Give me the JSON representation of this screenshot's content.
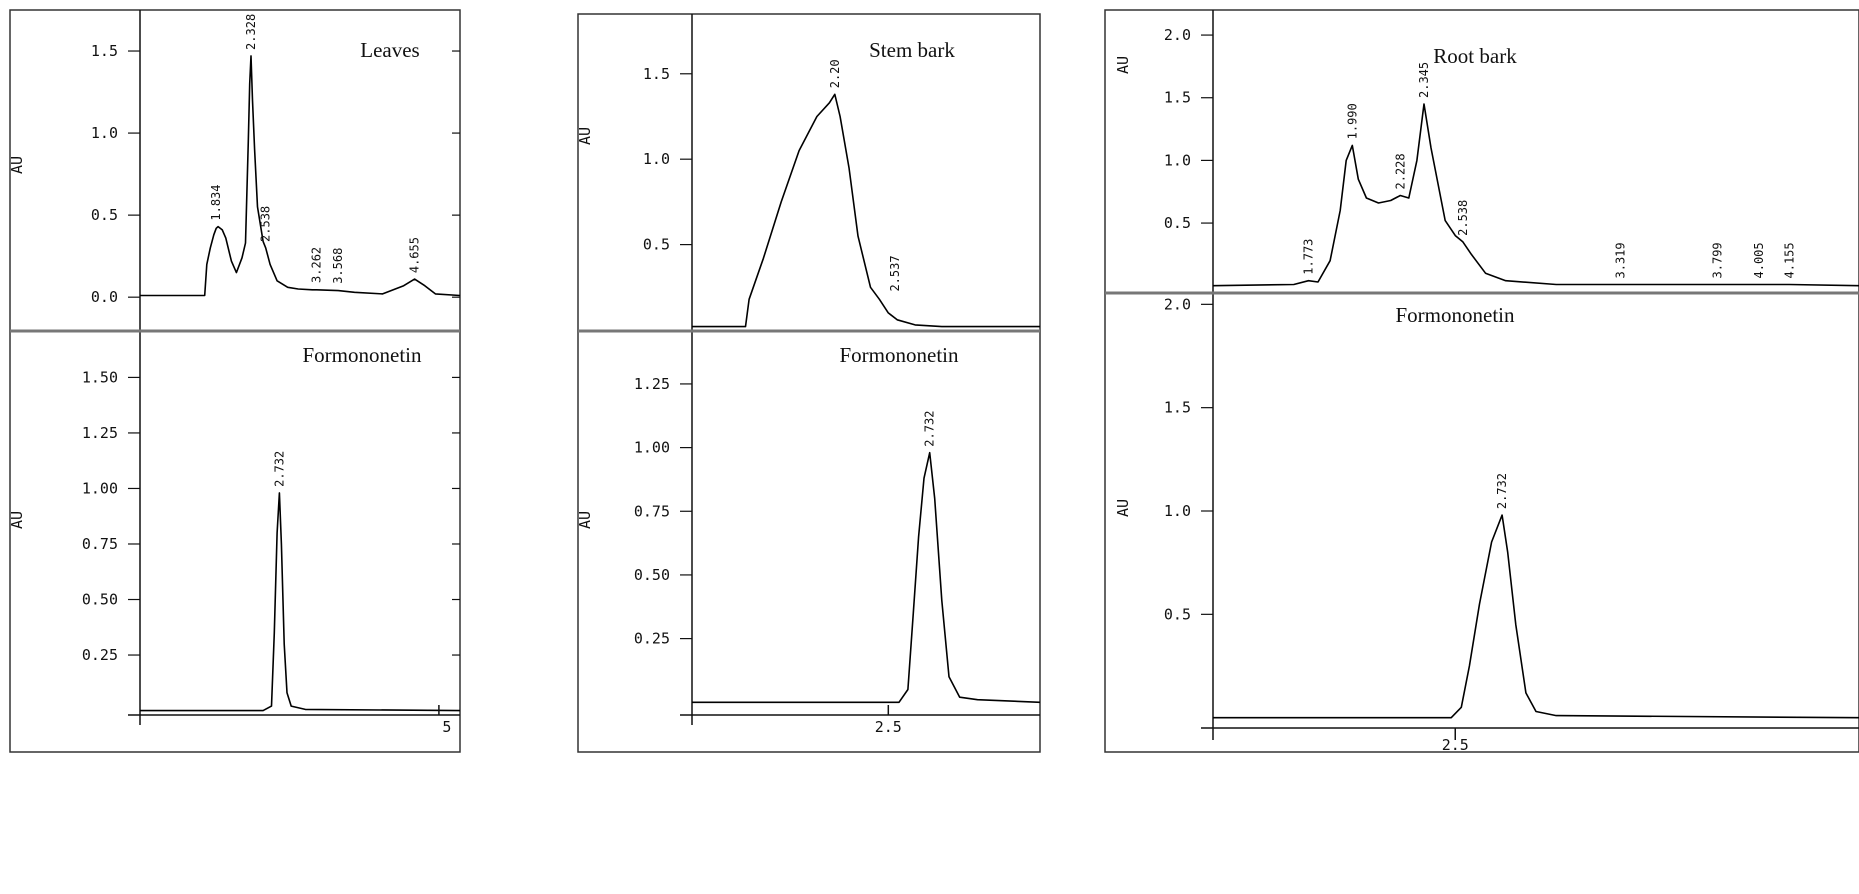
{
  "chart_data": [
    {
      "type": "line",
      "panel": "left",
      "xlim": [
        0.75,
        5.3
      ],
      "xticks": [
        {
          "value": 5,
          "label": "5"
        }
      ],
      "subplots": [
        {
          "title": "Leaves",
          "ylabel": "AU",
          "ylim": [
            -0.2,
            1.75
          ],
          "yticks": [
            {
              "value": 0.0,
              "label": "0.0"
            },
            {
              "value": 0.5,
              "label": "0.5"
            },
            {
              "value": 1.0,
              "label": "1.0"
            },
            {
              "value": 1.5,
              "label": "1.5"
            }
          ],
          "series": [
            {
              "x": [
                0.75,
                1.67,
                1.7,
                1.75,
                1.8,
                1.834,
                1.86,
                1.92,
                1.97,
                2.05,
                2.12,
                2.2,
                2.25,
                2.29,
                2.31,
                2.328,
                2.35,
                2.38,
                2.42,
                2.5,
                2.538,
                2.6,
                2.7,
                2.85,
                3.0,
                3.2,
                3.262,
                3.568,
                3.8,
                4.2,
                4.5,
                4.655,
                4.8,
                4.95,
                5.3
              ],
              "y": [
                0.01,
                0.01,
                0.2,
                0.3,
                0.38,
                0.42,
                0.43,
                0.41,
                0.36,
                0.22,
                0.15,
                0.24,
                0.33,
                0.95,
                1.3,
                1.47,
                1.2,
                0.9,
                0.55,
                0.34,
                0.3,
                0.2,
                0.1,
                0.06,
                0.05,
                0.045,
                0.045,
                0.04,
                0.03,
                0.02,
                0.07,
                0.11,
                0.07,
                0.02,
                0.01
              ]
            }
          ],
          "peak_labels": [
            {
              "x": 1.834,
              "y": 0.43,
              "label": "1.834"
            },
            {
              "x": 2.328,
              "y": 1.47,
              "label": "2.328"
            },
            {
              "x": 2.538,
              "y": 0.3,
              "label": "2.538"
            },
            {
              "x": 3.262,
              "y": 0.05,
              "label": "3.262"
            },
            {
              "x": 3.568,
              "y": 0.045,
              "label": "3.568"
            },
            {
              "x": 4.655,
              "y": 0.11,
              "label": "4.655"
            }
          ]
        },
        {
          "title": "Formononetin",
          "ylabel": "AU",
          "ylim": [
            -0.02,
            1.7
          ],
          "yticks": [
            {
              "value": 0.25,
              "label": "0.25"
            },
            {
              "value": 0.5,
              "label": "0.50"
            },
            {
              "value": 0.75,
              "label": "0.75"
            },
            {
              "value": 1.0,
              "label": "1.00"
            },
            {
              "value": 1.25,
              "label": "1.25"
            },
            {
              "value": 1.5,
              "label": "1.50"
            }
          ],
          "series": [
            {
              "x": [
                0.75,
                2.5,
                2.62,
                2.66,
                2.7,
                2.732,
                2.76,
                2.8,
                2.84,
                2.9,
                3.1,
                5.3
              ],
              "y": [
                0.0,
                0.0,
                0.02,
                0.35,
                0.8,
                0.98,
                0.75,
                0.3,
                0.08,
                0.02,
                0.005,
                0.0
              ]
            }
          ],
          "peak_labels": [
            {
              "x": 2.732,
              "y": 0.98,
              "label": "2.732"
            }
          ]
        }
      ]
    },
    {
      "type": "line",
      "panel": "middle",
      "xlim": [
        1.4,
        3.35
      ],
      "xticks": [
        {
          "value": 2.5,
          "label": "2.5"
        }
      ],
      "subplots": [
        {
          "title": "Stem bark",
          "ylabel": "AU",
          "ylim": [
            0.0,
            1.85
          ],
          "yticks": [
            {
              "value": 0.5,
              "label": "0.5"
            },
            {
              "value": 1.0,
              "label": "1.0"
            },
            {
              "value": 1.5,
              "label": "1.5"
            }
          ],
          "series": [
            {
              "x": [
                1.4,
                1.7,
                1.72,
                1.8,
                1.9,
                2.0,
                2.1,
                2.17,
                2.2,
                2.23,
                2.28,
                2.33,
                2.4,
                2.45,
                2.5,
                2.55,
                2.65,
                2.8,
                3.35
              ],
              "y": [
                0.02,
                0.02,
                0.18,
                0.42,
                0.75,
                1.05,
                1.25,
                1.33,
                1.38,
                1.25,
                0.95,
                0.55,
                0.25,
                0.18,
                0.1,
                0.06,
                0.03,
                0.02,
                0.02
              ]
            }
          ],
          "peak_labels": [
            {
              "x": 2.2,
              "y": 1.38,
              "label": "2.20"
            },
            {
              "x": 2.537,
              "y": 0.19,
              "label": "2.537"
            }
          ]
        },
        {
          "title": "Formononetin",
          "ylabel": "AU",
          "ylim": [
            -0.05,
            1.45
          ],
          "yticks": [
            {
              "value": 0.25,
              "label": "0.25"
            },
            {
              "value": 0.5,
              "label": "0.50"
            },
            {
              "value": 0.75,
              "label": "0.75"
            },
            {
              "value": 1.0,
              "label": "1.00"
            },
            {
              "value": 1.25,
              "label": "1.25"
            }
          ],
          "series": [
            {
              "x": [
                1.4,
                2.56,
                2.61,
                2.64,
                2.67,
                2.7,
                2.732,
                2.76,
                2.8,
                2.84,
                2.9,
                3.0,
                3.35
              ],
              "y": [
                0.0,
                0.0,
                0.05,
                0.35,
                0.65,
                0.88,
                0.98,
                0.8,
                0.4,
                0.1,
                0.02,
                0.01,
                0.0
              ]
            }
          ],
          "peak_labels": [
            {
              "x": 2.732,
              "y": 0.98,
              "label": "2.732"
            }
          ]
        }
      ]
    },
    {
      "type": "line",
      "panel": "right",
      "xlim": [
        1.3,
        4.5
      ],
      "xticks": [
        {
          "value": 2.5,
          "label": "2.5"
        }
      ],
      "subplots": [
        {
          "title": "Root bark",
          "ylabel": "AU",
          "ylim": [
            -0.05,
            2.2
          ],
          "yticks": [
            {
              "value": 0.5,
              "label": "0.5"
            },
            {
              "value": 1.0,
              "label": "1.0"
            },
            {
              "value": 1.5,
              "label": "1.5"
            },
            {
              "value": 2.0,
              "label": "2.0"
            }
          ],
          "series": [
            {
              "x": [
                1.3,
                1.7,
                1.773,
                1.82,
                1.88,
                1.93,
                1.96,
                1.99,
                2.02,
                2.06,
                2.12,
                2.18,
                2.228,
                2.27,
                2.31,
                2.345,
                2.38,
                2.45,
                2.5,
                2.538,
                2.58,
                2.65,
                2.75,
                3.0,
                3.319,
                3.799,
                4.005,
                4.155,
                4.5
              ],
              "y": [
                0.0,
                0.01,
                0.04,
                0.03,
                0.2,
                0.6,
                1.0,
                1.12,
                0.85,
                0.7,
                0.66,
                0.68,
                0.72,
                0.7,
                1.0,
                1.45,
                1.1,
                0.52,
                0.4,
                0.35,
                0.25,
                0.1,
                0.04,
                0.01,
                0.01,
                0.01,
                0.01,
                0.01,
                0.0
              ]
            }
          ],
          "peak_labels": [
            {
              "x": 1.773,
              "y": 0.04,
              "label": "1.773"
            },
            {
              "x": 1.99,
              "y": 1.12,
              "label": "1.990"
            },
            {
              "x": 2.228,
              "y": 0.72,
              "label": "2.228"
            },
            {
              "x": 2.345,
              "y": 1.45,
              "label": "2.345"
            },
            {
              "x": 2.538,
              "y": 0.35,
              "label": "2.538"
            },
            {
              "x": 3.319,
              "y": 0.01,
              "label": "3.319"
            },
            {
              "x": 3.799,
              "y": 0.01,
              "label": "3.799"
            },
            {
              "x": 4.005,
              "y": 0.01,
              "label": "4.005"
            },
            {
              "x": 4.155,
              "y": 0.01,
              "label": "4.155"
            }
          ]
        },
        {
          "title": "Formononetin",
          "ylabel": "AU",
          "ylim": [
            -0.05,
            2.05
          ],
          "yticks": [
            {
              "value": 0.5,
              "label": "0.5"
            },
            {
              "value": 1.0,
              "label": "1.0"
            },
            {
              "value": 1.5,
              "label": "1.5"
            },
            {
              "value": 2.0,
              "label": "2.0"
            }
          ],
          "series": [
            {
              "x": [
                1.3,
                2.48,
                2.53,
                2.57,
                2.62,
                2.68,
                2.732,
                2.76,
                2.8,
                2.85,
                2.9,
                3.0,
                4.5
              ],
              "y": [
                0.0,
                0.0,
                0.05,
                0.25,
                0.55,
                0.85,
                0.98,
                0.8,
                0.45,
                0.12,
                0.03,
                0.01,
                0.0
              ]
            }
          ],
          "peak_labels": [
            {
              "x": 2.732,
              "y": 0.98,
              "label": "2.732"
            }
          ]
        }
      ]
    }
  ]
}
